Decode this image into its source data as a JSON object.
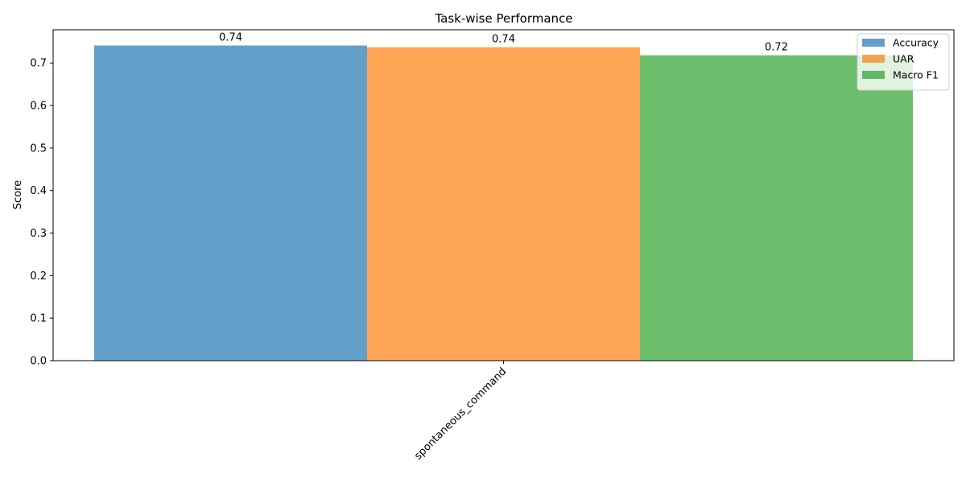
{
  "chart_data": {
    "type": "bar",
    "title": "Task-wise Performance",
    "xlabel": "",
    "ylabel": "Score",
    "categories": [
      "spontaneous_command"
    ],
    "series": [
      {
        "name": "Accuracy",
        "values": [
          0.741
        ],
        "label": "0.74",
        "color": "#1f77b4"
      },
      {
        "name": "UAR",
        "values": [
          0.737
        ],
        "label": "0.74",
        "color": "#ff7f0e"
      },
      {
        "name": "Macro F1",
        "values": [
          0.718
        ],
        "label": "0.72",
        "color": "#2ca02c"
      }
    ],
    "ylim": [
      0,
      0.778
    ],
    "yticks": [
      "0.0",
      "0.1",
      "0.2",
      "0.3",
      "0.4",
      "0.5",
      "0.6",
      "0.7"
    ],
    "ytick_values": [
      0,
      0.1,
      0.2,
      0.3,
      0.4,
      0.5,
      0.6,
      0.7
    ],
    "bar_opacity": 0.7,
    "grid": false,
    "legend_position": "top-right"
  }
}
